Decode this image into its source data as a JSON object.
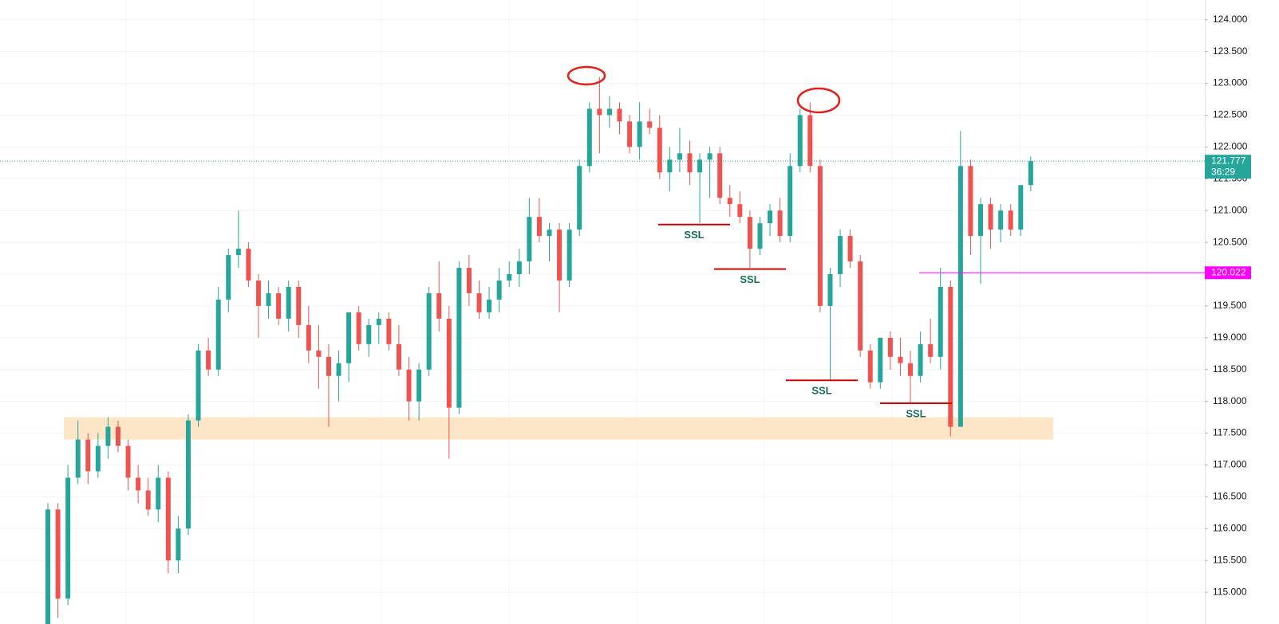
{
  "chart_data": {
    "type": "candlestick",
    "up_color": "#26a69a",
    "down_color": "#ef5350",
    "open": [
      114.5,
      116.3,
      114.9,
      116.8,
      117.4,
      116.9,
      117.3,
      117.6,
      117.3,
      116.8,
      116.6,
      116.3,
      116.8,
      115.5,
      116.0,
      117.7,
      118.8,
      118.5,
      119.6,
      120.3,
      120.4,
      119.9,
      119.5,
      119.7,
      119.3,
      119.8,
      119.2,
      118.8,
      118.7,
      118.4,
      118.6,
      119.4,
      118.9,
      119.2,
      119.3,
      118.9,
      118.5,
      118.0,
      118.5,
      119.7,
      119.3,
      117.9,
      120.1,
      119.7,
      119.4,
      119.6,
      119.9,
      120.0,
      120.2,
      120.9,
      120.6,
      120.7,
      119.9,
      120.7,
      121.7,
      122.6,
      122.5,
      122.6,
      122.4,
      122.0,
      122.4,
      122.3,
      121.6,
      121.8,
      121.9,
      121.6,
      121.8,
      121.9,
      121.2,
      121.1,
      120.9,
      120.4,
      120.8,
      121.0,
      120.6,
      121.7,
      122.5,
      121.7,
      119.5,
      120.0,
      120.6,
      120.2,
      118.8,
      118.3,
      119.0,
      118.7,
      118.6,
      118.4,
      118.9,
      118.7,
      119.8,
      117.6,
      121.7,
      120.6,
      121.1,
      120.7,
      121.0,
      120.7,
      121.4
    ],
    "high": [
      116.4,
      116.4,
      117.0,
      117.7,
      117.5,
      117.5,
      117.75,
      117.7,
      117.4,
      117.0,
      116.8,
      117.0,
      116.9,
      116.2,
      117.8,
      118.9,
      119.0,
      119.8,
      120.4,
      121.0,
      120.5,
      120.0,
      119.9,
      119.8,
      119.9,
      119.9,
      119.5,
      119.2,
      118.9,
      118.8,
      119.4,
      119.5,
      119.3,
      119.4,
      119.4,
      119.2,
      118.7,
      118.6,
      119.8,
      120.2,
      119.5,
      120.2,
      120.3,
      119.9,
      119.8,
      120.1,
      120.2,
      120.4,
      121.2,
      121.2,
      120.8,
      120.8,
      120.8,
      121.8,
      122.7,
      123.1,
      122.8,
      122.7,
      122.5,
      122.7,
      122.6,
      122.5,
      122.0,
      122.3,
      122.1,
      121.9,
      122.0,
      122.0,
      121.4,
      121.3,
      121.0,
      120.9,
      121.1,
      121.2,
      121.9,
      122.6,
      122.7,
      121.8,
      120.1,
      120.7,
      120.7,
      120.3,
      118.9,
      119.0,
      119.1,
      119.0,
      118.8,
      119.1,
      119.3,
      120.1,
      119.9,
      122.25,
      121.8,
      121.2,
      121.2,
      121.1,
      121.1,
      121.4,
      121.85
    ],
    "low": [
      114.5,
      114.6,
      114.8,
      116.7,
      116.7,
      116.8,
      117.1,
      117.2,
      116.6,
      116.4,
      116.2,
      116.1,
      115.3,
      115.3,
      115.9,
      117.6,
      118.4,
      118.4,
      119.4,
      120.1,
      119.8,
      119.0,
      119.3,
      119.2,
      119.1,
      119.0,
      118.6,
      118.2,
      117.6,
      118.0,
      118.3,
      118.8,
      118.7,
      118.9,
      118.8,
      118.4,
      117.7,
      117.7,
      118.4,
      119.1,
      117.1,
      117.8,
      119.5,
      119.3,
      119.3,
      119.4,
      119.8,
      119.8,
      120.0,
      120.5,
      120.2,
      119.4,
      119.8,
      120.6,
      121.6,
      121.9,
      122.3,
      122.2,
      121.9,
      121.8,
      122.2,
      121.5,
      121.3,
      121.6,
      121.4,
      120.8,
      121.2,
      121.1,
      120.9,
      120.8,
      120.1,
      120.3,
      120.6,
      120.5,
      120.5,
      121.6,
      121.6,
      119.4,
      118.33,
      119.8,
      120.1,
      118.7,
      118.2,
      118.2,
      118.5,
      118.4,
      117.97,
      118.3,
      118.6,
      118.5,
      117.45,
      117.6,
      120.3,
      119.85,
      120.4,
      120.5,
      120.6,
      120.6,
      121.3
    ],
    "close": [
      116.3,
      114.9,
      116.8,
      117.4,
      116.9,
      117.3,
      117.6,
      117.3,
      116.8,
      116.6,
      116.3,
      116.8,
      115.5,
      116.0,
      117.7,
      118.8,
      118.5,
      119.6,
      120.3,
      120.4,
      119.9,
      119.5,
      119.7,
      119.3,
      119.8,
      119.2,
      118.8,
      118.7,
      118.4,
      118.6,
      119.4,
      118.9,
      119.2,
      119.3,
      118.9,
      118.5,
      118.0,
      118.5,
      119.7,
      119.3,
      117.9,
      120.1,
      119.7,
      119.4,
      119.6,
      119.9,
      120.0,
      120.2,
      120.9,
      120.6,
      120.7,
      119.9,
      120.7,
      121.7,
      122.6,
      122.5,
      122.6,
      122.4,
      122.0,
      122.4,
      122.3,
      121.6,
      121.8,
      121.9,
      121.6,
      121.8,
      121.9,
      121.2,
      121.1,
      120.9,
      120.4,
      120.8,
      121.0,
      120.6,
      121.7,
      122.5,
      121.7,
      119.5,
      120.0,
      120.6,
      120.2,
      118.8,
      118.3,
      119.0,
      118.7,
      118.6,
      118.4,
      118.9,
      118.7,
      119.8,
      117.6,
      121.7,
      120.6,
      121.1,
      120.7,
      121.0,
      120.7,
      121.4,
      121.777
    ],
    "ylim": [
      114.5,
      124.31
    ],
    "yticks": [
      {
        "value": 115,
        "label": "115.000"
      },
      {
        "value": 115.5,
        "label": "115.500"
      },
      {
        "value": 116,
        "label": "116.000"
      },
      {
        "value": 116.5,
        "label": "116.500"
      },
      {
        "value": 117,
        "label": "117.000"
      },
      {
        "value": 117.5,
        "label": "117.500"
      },
      {
        "value": 118,
        "label": "118.000"
      },
      {
        "value": 118.5,
        "label": "118.500"
      },
      {
        "value": 119,
        "label": "119.000"
      },
      {
        "value": 119.5,
        "label": "119.500"
      },
      {
        "value": 120,
        "label": "120.000"
      },
      {
        "value": 120.5,
        "label": "120.500"
      },
      {
        "value": 121,
        "label": "121.000"
      },
      {
        "value": 121.5,
        "label": "121.500"
      },
      {
        "value": 122,
        "label": "122.000"
      },
      {
        "value": 122.5,
        "label": "122.500"
      },
      {
        "value": 123,
        "label": "123.000"
      },
      {
        "value": 123.5,
        "label": "123.500"
      },
      {
        "value": 124,
        "label": "124.000"
      }
    ],
    "grid": true,
    "last_price": 121.777,
    "countdown": "36:29",
    "last_price_color": "#26a69a",
    "level": {
      "value": 120.022,
      "color": "#ff00ff"
    },
    "zone": {
      "from": 117.4,
      "to": 117.75,
      "color": "#fde6c8"
    },
    "annotations": [
      {
        "label": "SSL",
        "price": 120.78
      },
      {
        "label": "SSL",
        "price": 120.08
      },
      {
        "label": "SSL",
        "price": 118.33
      },
      {
        "label": "SSL",
        "price": 117.97
      }
    ]
  }
}
